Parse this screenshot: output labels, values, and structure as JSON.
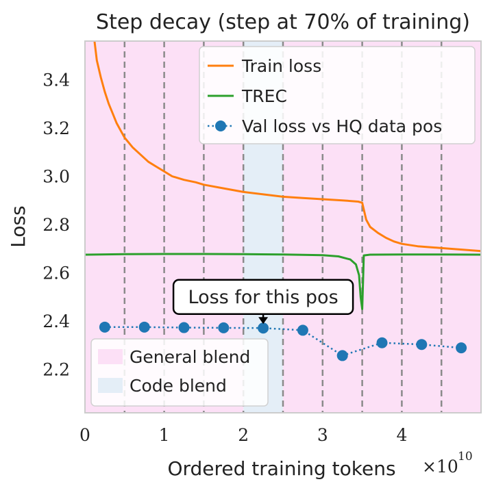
{
  "chart_data": {
    "type": "line",
    "title": "Step decay (step at 70% of training)",
    "xlabel": "Ordered training tokens",
    "ylabel": "Loss",
    "x_scale_label": "×10",
    "x_scale_exponent": "10",
    "xlim": [
      0,
      5.0
    ],
    "ylim": [
      2.02,
      3.56
    ],
    "x_ticks": [
      0,
      1,
      2,
      3,
      4
    ],
    "x_tick_labels": [
      "0",
      "1",
      "2",
      "3",
      "4"
    ],
    "y_ticks": [
      2.2,
      2.4,
      2.6,
      2.8,
      3.0,
      3.2,
      3.4
    ],
    "y_tick_labels": [
      "2.2",
      "2.4",
      "2.6",
      "2.8",
      "3.0",
      "3.2",
      "3.4"
    ],
    "grid": false,
    "dashed_vlines": [
      0.5,
      1.0,
      1.5,
      2.0,
      2.5,
      3.0,
      3.5,
      4.0,
      4.5
    ],
    "regions": [
      {
        "name": "General blend",
        "ranges": [
          [
            0,
            2.0
          ],
          [
            2.5,
            5.0
          ]
        ],
        "color": "#fce0f6"
      },
      {
        "name": "Code blend",
        "ranges": [
          [
            2.0,
            2.5
          ]
        ],
        "color": "#e4eef7"
      }
    ],
    "series": [
      {
        "name": "Train loss",
        "color": "#ff7f0e",
        "style": "solid",
        "x": [
          0.12,
          0.15,
          0.2,
          0.25,
          0.3,
          0.35,
          0.4,
          0.45,
          0.5,
          0.6,
          0.7,
          0.8,
          0.9,
          1.0,
          1.1,
          1.25,
          1.4,
          1.5,
          1.75,
          2.0,
          2.25,
          2.5,
          2.75,
          3.0,
          3.25,
          3.45,
          3.5,
          3.55,
          3.6,
          3.7,
          3.8,
          3.9,
          4.0,
          4.2,
          4.4,
          4.6,
          4.8,
          5.0
        ],
        "y": [
          3.56,
          3.48,
          3.41,
          3.35,
          3.3,
          3.26,
          3.22,
          3.19,
          3.16,
          3.12,
          3.09,
          3.06,
          3.04,
          3.02,
          3.0,
          2.985,
          2.975,
          2.965,
          2.95,
          2.935,
          2.925,
          2.915,
          2.91,
          2.905,
          2.9,
          2.895,
          2.89,
          2.82,
          2.79,
          2.765,
          2.745,
          2.73,
          2.72,
          2.71,
          2.705,
          2.7,
          2.695,
          2.69
        ]
      },
      {
        "name": "TREC",
        "color": "#2ca02c",
        "style": "solid",
        "x": [
          0,
          0.5,
          1.0,
          1.5,
          2.0,
          2.5,
          3.0,
          3.2,
          3.35,
          3.42,
          3.46,
          3.48,
          3.5,
          3.52,
          3.6,
          4.0,
          4.5,
          5.0
        ],
        "y": [
          2.675,
          2.677,
          2.678,
          2.678,
          2.677,
          2.676,
          2.673,
          2.668,
          2.655,
          2.635,
          2.59,
          2.5,
          2.45,
          2.672,
          2.675,
          2.676,
          2.676,
          2.675
        ]
      },
      {
        "name": "Val loss vs HQ data pos",
        "color": "#1f77b4",
        "style": "dotted-markers",
        "x": [
          0.25,
          0.75,
          1.25,
          1.75,
          2.25,
          2.75,
          3.25,
          3.75,
          4.25,
          4.75
        ],
        "y": [
          2.375,
          2.375,
          2.373,
          2.372,
          2.371,
          2.362,
          2.257,
          2.31,
          2.303,
          2.289
        ]
      }
    ],
    "annotation": {
      "text": "Loss for this pos",
      "x": 2.25,
      "y": 2.371,
      "text_x": 2.25,
      "text_y": 2.5
    },
    "legend_top": {
      "placement": "top-right",
      "entries": [
        "Train loss",
        "TREC",
        "Val loss vs HQ data pos"
      ]
    },
    "legend_bottom": {
      "placement": "bottom-left",
      "entries": [
        "General blend",
        "Code blend"
      ]
    }
  }
}
